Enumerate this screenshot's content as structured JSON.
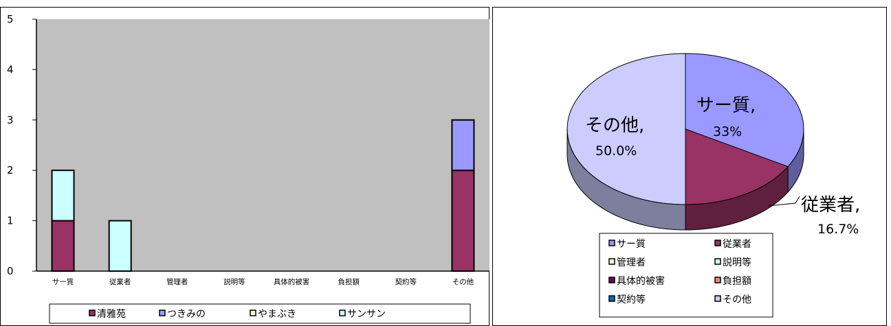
{
  "colors": {
    "plot_bg": "#c0c0c0",
    "清雅苑": "#993366",
    "つきみの": "#9999ff",
    "やまぶき": "#ffffcc",
    "サンサン": "#ccffff",
    "pie_sa": "#9999ff",
    "pie_emp": "#993366",
    "pie_other": "#ccccff",
    "legend_mgr": "#ffffcc",
    "legend_expl": "#ccffff",
    "legend_dmg": "#660066",
    "legend_burden": "#ff8080",
    "legend_contract": "#0066cc"
  },
  "chart_data": [
    {
      "type": "bar",
      "stacked": true,
      "categories": [
        "サー質",
        "従業者",
        "管理者",
        "説明等",
        "具体的被害",
        "負担額",
        "契約等",
        "その他"
      ],
      "series": [
        {
          "name": "清雅苑",
          "values": [
            1,
            0,
            0,
            0,
            0,
            0,
            0,
            2
          ]
        },
        {
          "name": "つきみの",
          "values": [
            0,
            0,
            0,
            0,
            0,
            0,
            0,
            1
          ]
        },
        {
          "name": "やまぶき",
          "values": [
            0,
            0,
            0,
            0,
            0,
            0,
            0,
            0
          ]
        },
        {
          "name": "サンサン",
          "values": [
            1,
            1,
            0,
            0,
            0,
            0,
            0,
            0
          ]
        }
      ],
      "yticks": [
        "0",
        "1",
        "2",
        "3",
        "4",
        "5"
      ],
      "ylim": [
        0,
        5
      ],
      "legend": "bottom"
    },
    {
      "type": "pie",
      "slices": [
        {
          "label": "サー質",
          "value": 33.3,
          "display": "33%"
        },
        {
          "label": "従業者",
          "value": 16.7,
          "display": "16.7%"
        },
        {
          "label": "その他",
          "value": 50.0,
          "display": "50.0%"
        }
      ],
      "slice_label_sep": ",",
      "legend": [
        "サー質",
        "従業者",
        "管理者",
        "説明等",
        "具体的被害",
        "負担額",
        "契約等",
        "その他"
      ],
      "legend_position": "bottom"
    }
  ]
}
